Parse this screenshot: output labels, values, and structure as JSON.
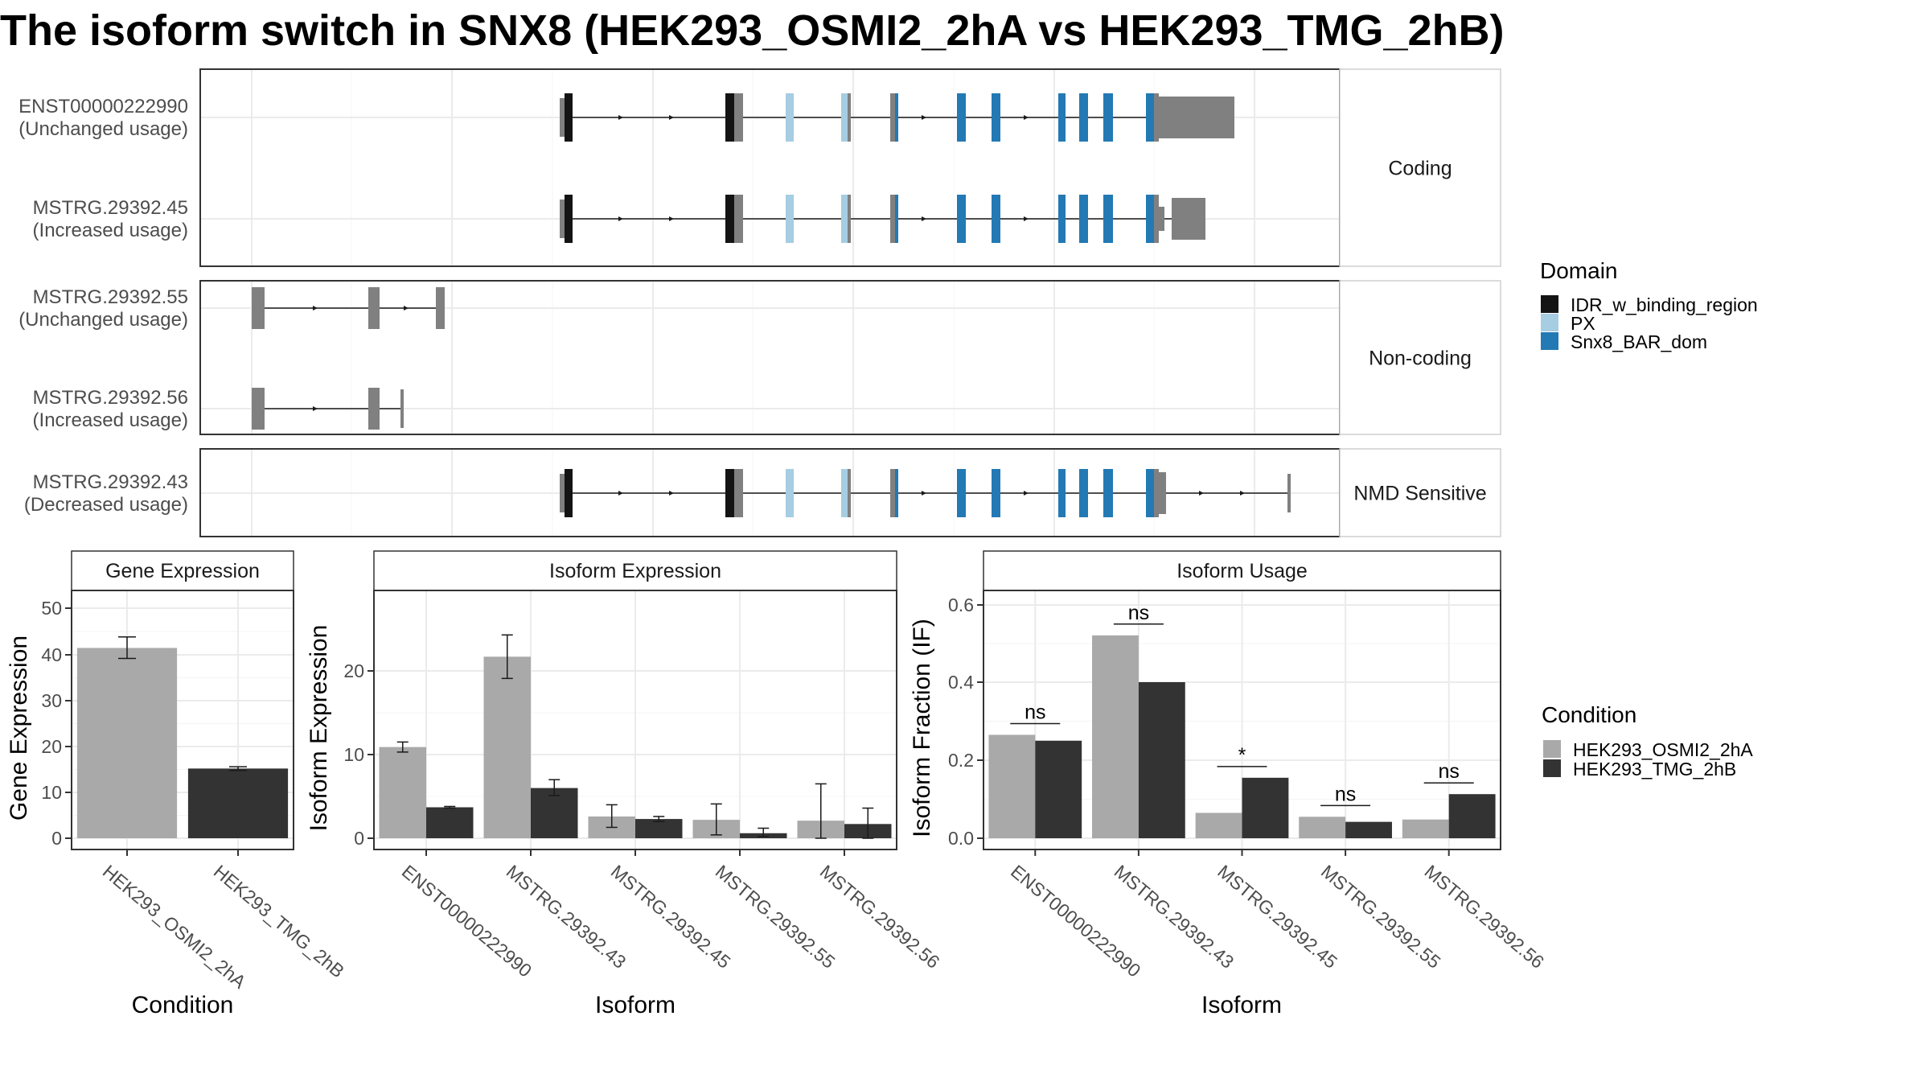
{
  "title": "The isoform switch in SNX8 (HEK293_OSMI2_2hA vs HEK293_TMG_2hB)",
  "colors": {
    "idr": "#141414",
    "px": "#a6cde2",
    "bar_dom": "#2379b4",
    "exon": "#808080",
    "cond1": "#a9a9a9",
    "cond2": "#333333"
  },
  "domain_legend": {
    "title": "Domain",
    "items": [
      {
        "label": "IDR_w_binding_region",
        "color": "#141414"
      },
      {
        "label": "PX",
        "color": "#a6cde2"
      },
      {
        "label": "Snx8_BAR_dom",
        "color": "#2379b4"
      }
    ]
  },
  "condition_legend": {
    "title": "Condition",
    "items": [
      {
        "label": "HEK293_OSMI2_2hA",
        "color": "#a9a9a9"
      },
      {
        "label": "HEK293_TMG_2hB",
        "color": "#333333"
      }
    ]
  },
  "structure": {
    "groups": [
      {
        "name": "Coding",
        "transcripts": [
          {
            "id": "ENST00000222990",
            "usage": "(Unchanged usage)"
          },
          {
            "id": "MSTRG.29392.45",
            "usage": "(Increased usage)"
          }
        ]
      },
      {
        "name": "Non-coding",
        "transcripts": [
          {
            "id": "MSTRG.29392.55",
            "usage": "(Unchanged usage)"
          },
          {
            "id": "MSTRG.29392.56",
            "usage": "(Increased usage)"
          }
        ]
      },
      {
        "name": "NMD Sensitive",
        "transcripts": [
          {
            "id": "MSTRG.29392.43",
            "usage": "(Decreased usage)"
          }
        ]
      }
    ]
  },
  "chart_data": [
    {
      "type": "bar",
      "title": "Gene Expression",
      "xlabel": "Condition",
      "ylabel": "Gene Expression",
      "ylim": [
        0,
        53
      ],
      "yticks": [
        0,
        10,
        20,
        30,
        40,
        50
      ],
      "categories": [
        "HEK293_OSMI2_2hA",
        "HEK293_TMG_2hB"
      ],
      "values": [
        41.5,
        15.2
      ],
      "errors": [
        [
          39.2,
          43.9
        ],
        [
          14.8,
          15.6
        ]
      ]
    },
    {
      "type": "bar",
      "title": "Isoform Expression",
      "xlabel": "Isoform",
      "ylabel": "Isoform Expression",
      "ylim": [
        0,
        29.5
      ],
      "yticks": [
        0,
        10,
        20
      ],
      "categories": [
        "ENST00000222990",
        "MSTRG.29392.43",
        "MSTRG.29392.45",
        "MSTRG.29392.55",
        "MSTRG.29392.56"
      ],
      "series": [
        {
          "values": [
            10.9,
            21.7,
            2.6,
            2.2,
            2.1
          ],
          "errors": [
            [
              10.3,
              11.5
            ],
            [
              19.1,
              24.3
            ],
            [
              1.3,
              4.0
            ],
            [
              0.4,
              4.1
            ],
            [
              0.0,
              6.5
            ]
          ]
        },
        {
          "values": [
            3.7,
            6.0,
            2.3,
            0.6,
            1.7
          ],
          "errors": [
            [
              3.6,
              3.8
            ],
            [
              5.1,
              7.0
            ],
            [
              2.0,
              2.6
            ],
            [
              0.2,
              1.2
            ],
            [
              0.0,
              3.6
            ]
          ]
        }
      ]
    },
    {
      "type": "bar",
      "title": "Isoform Usage",
      "xlabel": "Isoform",
      "ylabel": "Isoform Fraction (IF)",
      "ylim": [
        0,
        0.63
      ],
      "yticks": [
        "0.0",
        "0.2",
        "0.4",
        "0.6"
      ],
      "categories": [
        "ENST00000222990",
        "MSTRG.29392.43",
        "MSTRG.29392.45",
        "MSTRG.29392.55",
        "MSTRG.29392.56"
      ],
      "series": [
        {
          "values": [
            0.265,
            0.52,
            0.065,
            0.055,
            0.048
          ]
        },
        {
          "values": [
            0.25,
            0.4,
            0.155,
            0.042,
            0.113
          ]
        }
      ],
      "significance": [
        "ns",
        "ns",
        "*",
        "ns",
        "ns"
      ]
    }
  ]
}
